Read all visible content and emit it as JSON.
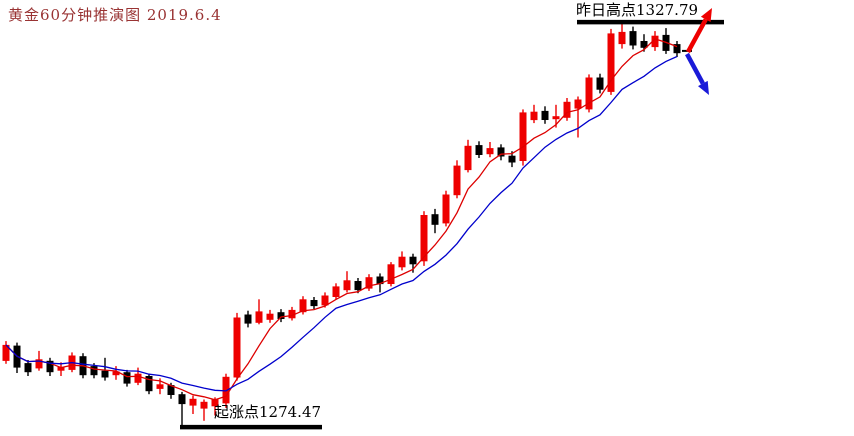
{
  "page": {
    "background": "#FFFFFF"
  },
  "header": {
    "title": "黄金60分钟推演图  2019.6.4",
    "title_color": "#993333"
  },
  "chart_data": {
    "type": "candlestick",
    "title": "黄金60分钟推演图",
    "date": "2019.6.4",
    "timeframe": "60分钟",
    "grid": false,
    "up_color": "#EE0000",
    "down_color": "#000000",
    "ylim": [
      1273.3,
      1330.7
    ],
    "moving_averages": [
      {
        "name": "ma-fast-line",
        "period": 5,
        "color": "#DD0000"
      },
      {
        "name": "ma-slow-line",
        "period": 10,
        "color": "#0000CC"
      }
    ],
    "candles_ohlc": [
      [
        1283.2,
        1285.8,
        1282.8,
        1285.3
      ],
      [
        1285.2,
        1285.6,
        1281.6,
        1282.3
      ],
      [
        1282.9,
        1283.3,
        1281.2,
        1281.7
      ],
      [
        1282.2,
        1284.5,
        1281.9,
        1283.4
      ],
      [
        1283.2,
        1283.6,
        1281.2,
        1281.7
      ],
      [
        1281.9,
        1283.0,
        1281.2,
        1282.4
      ],
      [
        1282.0,
        1284.3,
        1281.7,
        1283.9
      ],
      [
        1283.8,
        1284.2,
        1280.9,
        1281.3
      ],
      [
        1282.5,
        1282.9,
        1280.9,
        1281.3
      ],
      [
        1281.9,
        1283.6,
        1280.6,
        1281.0
      ],
      [
        1281.3,
        1282.5,
        1280.7,
        1281.8
      ],
      [
        1281.7,
        1282.0,
        1279.8,
        1280.2
      ],
      [
        1280.3,
        1282.3,
        1280.0,
        1281.5
      ],
      [
        1281.2,
        1281.5,
        1278.8,
        1279.2
      ],
      [
        1279.5,
        1280.9,
        1278.8,
        1280.1
      ],
      [
        1280.0,
        1280.3,
        1278.2,
        1278.7
      ],
      [
        1278.8,
        1279.1,
        1274.5,
        1277.5
      ],
      [
        1277.3,
        1278.6,
        1276.2,
        1278.2
      ],
      [
        1276.9,
        1278.1,
        1275.3,
        1277.8
      ],
      [
        1277.2,
        1278.4,
        1276.0,
        1278.1
      ],
      [
        1277.6,
        1281.5,
        1277.0,
        1281.1
      ],
      [
        1281.0,
        1289.5,
        1280.6,
        1288.9
      ],
      [
        1289.3,
        1289.8,
        1287.6,
        1288.1
      ],
      [
        1288.2,
        1291.3,
        1288.0,
        1289.7
      ],
      [
        1288.6,
        1289.9,
        1288.2,
        1289.4
      ],
      [
        1289.6,
        1290.0,
        1288.3,
        1288.7
      ],
      [
        1288.8,
        1290.3,
        1288.5,
        1289.9
      ],
      [
        1289.6,
        1291.7,
        1289.3,
        1291.3
      ],
      [
        1291.2,
        1291.6,
        1290.0,
        1290.4
      ],
      [
        1290.5,
        1292.2,
        1290.2,
        1291.8
      ],
      [
        1291.6,
        1293.4,
        1291.3,
        1293.0
      ],
      [
        1292.5,
        1295.0,
        1292.2,
        1293.8
      ],
      [
        1293.7,
        1294.1,
        1292.1,
        1292.5
      ],
      [
        1292.7,
        1294.6,
        1292.4,
        1294.2
      ],
      [
        1294.3,
        1294.7,
        1292.2,
        1293.3
      ],
      [
        1293.3,
        1296.2,
        1293.0,
        1295.9
      ],
      [
        1295.5,
        1297.6,
        1295.1,
        1296.9
      ],
      [
        1296.9,
        1297.3,
        1294.8,
        1295.9
      ],
      [
        1296.3,
        1302.9,
        1295.7,
        1302.4
      ],
      [
        1302.5,
        1303.2,
        1300.0,
        1301.1
      ],
      [
        1301.3,
        1305.6,
        1300.9,
        1305.1
      ],
      [
        1305.0,
        1309.6,
        1304.6,
        1308.9
      ],
      [
        1308.3,
        1312.3,
        1308.0,
        1311.5
      ],
      [
        1311.6,
        1312.1,
        1309.9,
        1310.3
      ],
      [
        1310.4,
        1312.0,
        1310.0,
        1311.2
      ],
      [
        1311.3,
        1311.7,
        1309.6,
        1310.1
      ],
      [
        1310.2,
        1310.8,
        1308.7,
        1309.3
      ],
      [
        1309.5,
        1316.3,
        1308.9,
        1315.9
      ],
      [
        1314.9,
        1316.9,
        1314.5,
        1316.0
      ],
      [
        1316.1,
        1316.7,
        1314.4,
        1314.9
      ],
      [
        1315.0,
        1316.9,
        1313.9,
        1315.4
      ],
      [
        1315.2,
        1317.8,
        1314.8,
        1317.3
      ],
      [
        1316.4,
        1318.0,
        1312.6,
        1317.6
      ],
      [
        1316.3,
        1320.9,
        1315.9,
        1320.5
      ],
      [
        1320.5,
        1321.0,
        1318.4,
        1318.9
      ],
      [
        1318.6,
        1326.9,
        1318.2,
        1326.3
      ],
      [
        1324.9,
        1327.7,
        1324.3,
        1326.5
      ],
      [
        1326.6,
        1327.2,
        1324.2,
        1324.7
      ],
      [
        1325.3,
        1326.2,
        1323.9,
        1324.4
      ],
      [
        1324.5,
        1326.6,
        1324.0,
        1326.0
      ],
      [
        1326.1,
        1327.0,
        1323.6,
        1324.0
      ],
      [
        1324.9,
        1325.3,
        1323.2,
        1323.7
      ]
    ],
    "levels": [
      {
        "name": "yesterday-high-line",
        "label": "昨日高点1327.79",
        "value": 1327.79,
        "x_from": 577,
        "x_to": 724,
        "color": "#000000"
      },
      {
        "name": "rally-start-line",
        "label": "起涨点1274.47",
        "value": 1274.47,
        "x_from": 180,
        "x_to": 322,
        "color": "#000000"
      }
    ],
    "scenario_arrows": [
      {
        "name": "bullish-scenario-arrow",
        "direction": "up",
        "color": "#EE0000",
        "from": [
          688,
          52
        ],
        "to": [
          712,
          8
        ]
      },
      {
        "name": "bearish-scenario-arrow",
        "direction": "down",
        "color": "#1A1AD8",
        "from": [
          687,
          54
        ],
        "to": [
          709,
          95
        ]
      }
    ],
    "last_price_tick": {
      "price": 1324.0,
      "x_from": 682,
      "x_to": 692,
      "color": "#000000"
    }
  }
}
